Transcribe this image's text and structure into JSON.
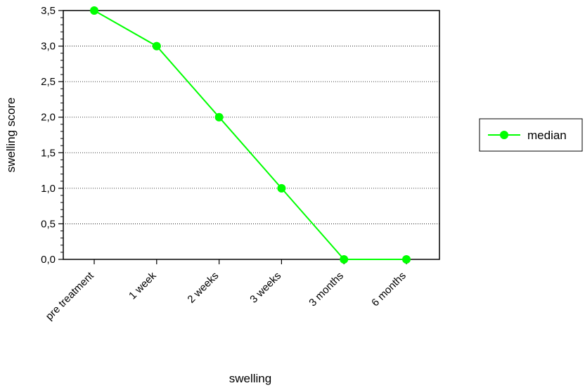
{
  "chart_data": {
    "type": "line",
    "title": "",
    "xlabel": "swelling",
    "ylabel": "swelling score",
    "categories": [
      "pre treatment",
      "1 week",
      "2 weeks",
      "3 weeks",
      "3 months",
      "6 months"
    ],
    "series": [
      {
        "name": "median",
        "values": [
          3.5,
          3.0,
          2.0,
          1.0,
          0.0,
          0.0
        ],
        "color": "#00ff00"
      }
    ],
    "ylim": [
      0,
      3.5
    ],
    "yticks": [
      "0,0",
      "0,5",
      "1,0",
      "1,5",
      "2,0",
      "2,5",
      "3,0",
      "3,5"
    ],
    "grid": "horizontal dotted",
    "legend_position": "right"
  }
}
